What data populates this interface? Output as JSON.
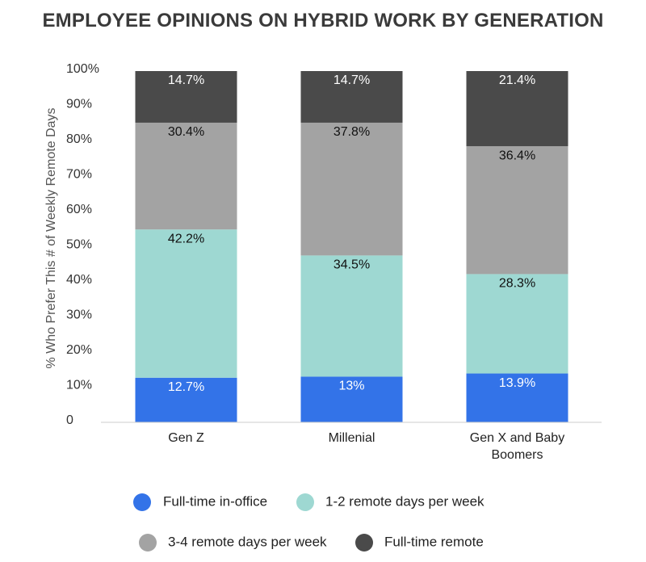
{
  "chart_data": {
    "type": "bar",
    "stacked": true,
    "title": "EMPLOYEE OPINIONS ON HYBRID WORK BY GENERATION",
    "xlabel": "",
    "ylabel": "% Who Prefer This # of Weekly Remote Days",
    "ylim": [
      0,
      100
    ],
    "yticks": [
      "0",
      "10%",
      "20%",
      "30%",
      "40%",
      "50%",
      "60%",
      "70%",
      "80%",
      "90%",
      "100%"
    ],
    "grid": false,
    "legend_position": "bottom",
    "categories": [
      "Gen Z",
      "Millenial",
      "Gen X and Baby Boomers"
    ],
    "category_lines": [
      [
        "Gen Z"
      ],
      [
        "Millenial"
      ],
      [
        "Gen X and Baby",
        "Boomers"
      ]
    ],
    "series": [
      {
        "name": "Full-time in-office",
        "color": "#3373e8",
        "label_color": "#ffffff",
        "values": [
          12.7,
          13,
          13.9
        ],
        "labels": [
          "12.7%",
          "13%",
          "13.9%"
        ]
      },
      {
        "name": "1-2 remote days per week",
        "color": "#9ed8d2",
        "label_color": "#111111",
        "values": [
          42.2,
          34.5,
          28.3
        ],
        "labels": [
          "42.2%",
          "34.5%",
          "28.3%"
        ]
      },
      {
        "name": "3-4 remote days per week",
        "color": "#a3a3a3",
        "label_color": "#111111",
        "values": [
          30.4,
          37.8,
          36.4
        ],
        "labels": [
          "30.4%",
          "37.8%",
          "36.4%"
        ]
      },
      {
        "name": "Full-time remote",
        "color": "#4a4a4a",
        "label_color": "#ffffff",
        "values": [
          14.7,
          14.7,
          21.4
        ],
        "labels": [
          "14.7%",
          "14.7%",
          "21.4%"
        ]
      }
    ]
  }
}
